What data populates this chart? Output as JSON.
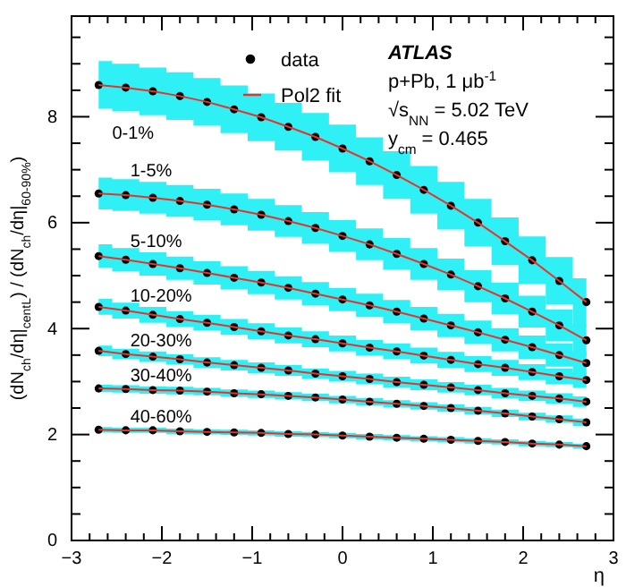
{
  "chart_data": {
    "type": "scatter",
    "xlabel": "η",
    "ylabel": "(dN$_{ch}$/dη|$_{centL}$) / (dN$_{ch}$/dη|$_{60-90%}$)",
    "x": [
      -2.7,
      -2.4,
      -2.1,
      -1.8,
      -1.5,
      -1.2,
      -0.9,
      -0.6,
      -0.3,
      0,
      0.3,
      0.6,
      0.9,
      1.2,
      1.5,
      1.8,
      2.1,
      2.4,
      2.7
    ],
    "xlim": [
      -3,
      3
    ],
    "ylim": [
      0,
      9.9
    ],
    "xticks": [
      -3,
      {
        "value": -2.8,
        "label": null
      },
      {
        "value": -2.6,
        "label": null
      },
      {
        "value": -2.4,
        "label": null
      },
      {
        "value": -2.2,
        "label": null
      },
      -2,
      {
        "value": -1.8,
        "label": null
      },
      {
        "value": -1.6,
        "label": null
      },
      {
        "value": -1.4,
        "label": null
      },
      {
        "value": -1.2,
        "label": null
      },
      -1,
      {
        "value": -0.8,
        "label": null
      },
      {
        "value": -0.6,
        "label": null
      },
      {
        "value": -0.4,
        "label": null
      },
      {
        "value": -0.2,
        "label": null
      },
      0,
      {
        "value": 0.2,
        "label": null
      },
      {
        "value": 0.4,
        "label": null
      },
      {
        "value": 0.6,
        "label": null
      },
      {
        "value": 0.8,
        "label": null
      },
      1,
      {
        "value": 1.2,
        "label": null
      },
      {
        "value": 1.4,
        "label": null
      },
      {
        "value": 1.6,
        "label": null
      },
      {
        "value": 1.8,
        "label": null
      },
      2,
      {
        "value": 2.2,
        "label": null
      },
      {
        "value": 2.4,
        "label": null
      },
      {
        "value": 2.6,
        "label": null
      },
      {
        "value": 2.8,
        "label": null
      },
      3
    ],
    "yticks": [
      0,
      {
        "value": 0.5,
        "label": null
      },
      {
        "value": 1,
        "label": null
      },
      {
        "value": 1.5,
        "label": null
      },
      2,
      {
        "value": 2.5,
        "label": null
      },
      {
        "value": 3,
        "label": null
      },
      {
        "value": 3.5,
        "label": null
      },
      4,
      {
        "value": 4.5,
        "label": null
      },
      {
        "value": 5,
        "label": null
      },
      {
        "value": 5.5,
        "label": null
      },
      6,
      {
        "value": 6.5,
        "label": null
      },
      {
        "value": 7,
        "label": null
      },
      {
        "value": 7.5,
        "label": null
      },
      8,
      {
        "value": 8.5,
        "label": null
      },
      {
        "value": 9,
        "label": null
      },
      {
        "value": 9.5,
        "label": null
      }
    ],
    "marker": "circle",
    "legend": "top",
    "grid": false,
    "series": [
      {
        "name": "data",
        "color": "#000000",
        "values": [
          8.6,
          8.55,
          8.48,
          8.39,
          8.28,
          8.14,
          7.99,
          7.81,
          7.62,
          7.4,
          7.16,
          6.9,
          6.62,
          6.32,
          6.0,
          5.65,
          5.29,
          4.9,
          4.5
        ],
        "lower": [
          8.15,
          8.1,
          8.03,
          7.94,
          7.83,
          7.69,
          7.54,
          7.36,
          7.17,
          6.95,
          6.71,
          6.45,
          6.17,
          5.87,
          5.55,
          5.2,
          4.84,
          4.45,
          4.05
        ],
        "upper": [
          9.05,
          9.0,
          8.93,
          8.84,
          8.73,
          8.59,
          8.44,
          8.26,
          8.07,
          7.85,
          7.61,
          7.35,
          7.07,
          6.77,
          6.45,
          6.1,
          5.74,
          5.35,
          4.95
        ]
      },
      {
        "color": "#000000",
        "values": [
          6.55,
          6.52,
          6.47,
          6.41,
          6.34,
          6.25,
          6.15,
          6.03,
          5.9,
          5.75,
          5.59,
          5.41,
          5.22,
          5.02,
          4.8,
          4.57,
          4.32,
          4.06,
          3.78
        ],
        "lower": [
          6.25,
          6.22,
          6.17,
          6.11,
          6.04,
          5.95,
          5.85,
          5.73,
          5.6,
          5.45,
          5.29,
          5.11,
          4.92,
          4.72,
          4.5,
          4.27,
          4.02,
          3.76,
          3.48
        ],
        "upper": [
          6.85,
          6.82,
          6.77,
          6.71,
          6.64,
          6.55,
          6.45,
          6.33,
          6.2,
          6.05,
          5.89,
          5.71,
          5.52,
          5.32,
          5.1,
          4.87,
          4.62,
          4.36,
          4.08
        ]
      },
      {
        "color": "#000000",
        "values": [
          5.37,
          5.3,
          5.22,
          5.14,
          5.05,
          4.96,
          4.87,
          4.77,
          4.66,
          4.55,
          4.44,
          4.32,
          4.19,
          4.06,
          3.93,
          3.79,
          3.65,
          3.5,
          3.35
        ],
        "lower": [
          5.15,
          5.08,
          5.0,
          4.92,
          4.83,
          4.74,
          4.65,
          4.55,
          4.44,
          4.33,
          4.22,
          4.1,
          3.97,
          3.84,
          3.71,
          3.57,
          3.43,
          3.28,
          3.13
        ],
        "upper": [
          5.59,
          5.52,
          5.44,
          5.36,
          5.27,
          5.18,
          5.09,
          4.99,
          4.88,
          4.77,
          4.66,
          4.54,
          4.41,
          4.28,
          4.15,
          4.01,
          3.87,
          3.72,
          3.57
        ]
      },
      {
        "color": "#000000",
        "values": [
          4.41,
          4.34,
          4.26,
          4.18,
          4.11,
          4.03,
          3.95,
          3.87,
          3.8,
          3.72,
          3.64,
          3.57,
          3.49,
          3.41,
          3.33,
          3.26,
          3.18,
          3.1,
          3.03
        ],
        "lower": [
          4.26,
          4.19,
          4.11,
          4.03,
          3.96,
          3.88,
          3.8,
          3.72,
          3.65,
          3.57,
          3.49,
          3.42,
          3.34,
          3.26,
          3.18,
          3.11,
          3.03,
          2.95,
          2.88
        ],
        "upper": [
          4.56,
          4.49,
          4.41,
          4.33,
          4.26,
          4.18,
          4.1,
          4.02,
          3.95,
          3.87,
          3.79,
          3.72,
          3.64,
          3.56,
          3.48,
          3.41,
          3.33,
          3.25,
          3.18
        ]
      },
      {
        "color": "#000000",
        "values": [
          3.58,
          3.52,
          3.47,
          3.42,
          3.36,
          3.31,
          3.26,
          3.21,
          3.15,
          3.1,
          3.05,
          2.99,
          2.94,
          2.89,
          2.84,
          2.78,
          2.73,
          2.68,
          2.62
        ],
        "lower": [
          3.48,
          3.42,
          3.37,
          3.32,
          3.26,
          3.21,
          3.16,
          3.11,
          3.05,
          3.0,
          2.95,
          2.89,
          2.84,
          2.79,
          2.74,
          2.68,
          2.63,
          2.58,
          2.52
        ],
        "upper": [
          3.68,
          3.62,
          3.57,
          3.52,
          3.46,
          3.41,
          3.36,
          3.31,
          3.25,
          3.2,
          3.15,
          3.09,
          3.04,
          2.99,
          2.94,
          2.88,
          2.83,
          2.78,
          2.72
        ]
      },
      {
        "color": "#000000",
        "values": [
          2.87,
          2.86,
          2.84,
          2.83,
          2.81,
          2.78,
          2.76,
          2.73,
          2.7,
          2.66,
          2.62,
          2.58,
          2.54,
          2.5,
          2.45,
          2.4,
          2.34,
          2.29,
          2.23
        ],
        "lower": [
          2.8,
          2.79,
          2.77,
          2.76,
          2.74,
          2.71,
          2.69,
          2.66,
          2.63,
          2.59,
          2.55,
          2.51,
          2.47,
          2.43,
          2.38,
          2.33,
          2.27,
          2.22,
          2.16
        ],
        "upper": [
          2.94,
          2.93,
          2.91,
          2.9,
          2.88,
          2.85,
          2.83,
          2.8,
          2.77,
          2.73,
          2.69,
          2.65,
          2.61,
          2.57,
          2.52,
          2.47,
          2.41,
          2.36,
          2.3
        ]
      },
      {
        "color": "#000000",
        "values": [
          2.09,
          2.08,
          2.08,
          2.06,
          2.05,
          2.04,
          2.03,
          2.01,
          2.0,
          1.98,
          1.96,
          1.94,
          1.92,
          1.9,
          1.88,
          1.86,
          1.83,
          1.81,
          1.78
        ],
        "lower": [
          2.04,
          2.03,
          2.03,
          2.01,
          2.0,
          1.99,
          1.98,
          1.96,
          1.95,
          1.93,
          1.91,
          1.89,
          1.87,
          1.85,
          1.83,
          1.81,
          1.78,
          1.76,
          1.73
        ],
        "upper": [
          2.14,
          2.13,
          2.13,
          2.11,
          2.1,
          2.09,
          2.08,
          2.06,
          2.05,
          2.03,
          2.01,
          1.99,
          1.97,
          1.95,
          1.93,
          1.91,
          1.88,
          1.86,
          1.83
        ]
      },
      {
        "type": "line",
        "marker": "none",
        "name": "Pol2 fit",
        "color": "#e8332a",
        "values": [
          8.6,
          8.55,
          8.48,
          8.39,
          8.28,
          8.14,
          7.99,
          7.81,
          7.62,
          7.4,
          7.16,
          6.9,
          6.62,
          6.32,
          6.0,
          5.65,
          5.29,
          4.9,
          4.5
        ]
      },
      {
        "type": "line",
        "marker": "none",
        "color": "#e8332a",
        "values": [
          6.55,
          6.52,
          6.47,
          6.41,
          6.34,
          6.25,
          6.15,
          6.03,
          5.9,
          5.75,
          5.59,
          5.41,
          5.22,
          5.02,
          4.8,
          4.57,
          4.32,
          4.06,
          3.78
        ]
      },
      {
        "type": "line",
        "marker": "none",
        "color": "#e8332a",
        "values": [
          5.37,
          5.3,
          5.22,
          5.14,
          5.05,
          4.96,
          4.87,
          4.77,
          4.66,
          4.55,
          4.44,
          4.32,
          4.19,
          4.06,
          3.93,
          3.79,
          3.65,
          3.5,
          3.35
        ]
      },
      {
        "type": "line",
        "marker": "none",
        "color": "#e8332a",
        "values": [
          4.41,
          4.34,
          4.26,
          4.18,
          4.11,
          4.03,
          3.95,
          3.87,
          3.8,
          3.72,
          3.64,
          3.57,
          3.49,
          3.41,
          3.33,
          3.26,
          3.18,
          3.1,
          3.03
        ]
      },
      {
        "type": "line",
        "marker": "none",
        "color": "#e8332a",
        "values": [
          3.58,
          3.52,
          3.47,
          3.42,
          3.36,
          3.31,
          3.26,
          3.21,
          3.15,
          3.1,
          3.05,
          2.99,
          2.94,
          2.89,
          2.84,
          2.78,
          2.73,
          2.68,
          2.62
        ]
      },
      {
        "type": "line",
        "marker": "none",
        "color": "#e8332a",
        "values": [
          2.87,
          2.86,
          2.84,
          2.83,
          2.81,
          2.78,
          2.76,
          2.73,
          2.7,
          2.66,
          2.62,
          2.58,
          2.54,
          2.5,
          2.45,
          2.4,
          2.34,
          2.29,
          2.23
        ]
      },
      {
        "type": "line",
        "marker": "none",
        "color": "#e8332a",
        "values": [
          2.09,
          2.08,
          2.08,
          2.06,
          2.05,
          2.04,
          2.03,
          2.01,
          2.0,
          1.98,
          1.96,
          1.94,
          1.92,
          1.9,
          1.88,
          1.86,
          1.83,
          1.81,
          1.78
        ]
      }
    ],
    "annotations": [
      "0-1%",
      "1-5%",
      "5-10%",
      "10-20%",
      "20-30%",
      "30-40%",
      "40-60%",
      "ATLAS",
      "p+Pb,  1 μb$^{-1}$",
      "√s$_{NN}$ = 5.02 TeV",
      "y$_{cm}$ = 0.465"
    ]
  }
}
